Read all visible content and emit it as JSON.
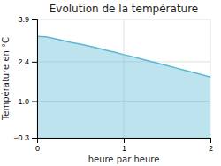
{
  "chart_data": {
    "type": "area",
    "title": "Evolution de la température",
    "xlabel": "heure par heure",
    "ylabel": "Température en °C",
    "x": [
      0,
      0.1,
      0.2,
      0.3,
      0.4,
      0.5,
      0.6,
      0.7,
      0.8,
      0.9,
      1.0,
      1.1,
      1.2,
      1.3,
      1.4,
      1.5,
      1.6,
      1.7,
      1.8,
      1.9,
      2.0
    ],
    "values": [
      3.3,
      3.28,
      3.22,
      3.15,
      3.08,
      3.02,
      2.95,
      2.88,
      2.8,
      2.73,
      2.65,
      2.58,
      2.5,
      2.42,
      2.34,
      2.26,
      2.18,
      2.1,
      2.02,
      1.94,
      1.85
    ],
    "color": "#5bb8d4",
    "xlim": [
      0,
      2
    ],
    "ylim": [
      -0.3,
      3.9
    ],
    "xticks": [
      0,
      1,
      2
    ],
    "yticks": [
      {
        "value": -0.3,
        "label": "−0.3"
      },
      {
        "value": 1.0,
        "label": "1.0"
      },
      2.4,
      3.9
    ],
    "grid": true
  }
}
